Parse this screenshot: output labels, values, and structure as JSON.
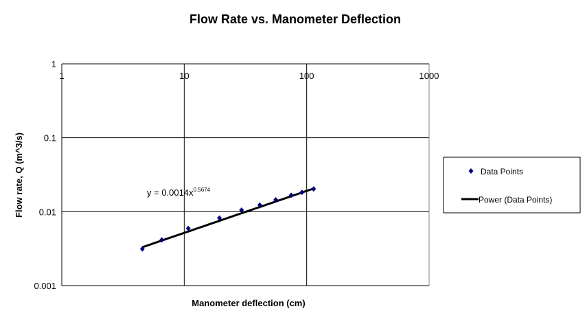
{
  "chart_data": {
    "type": "scatter",
    "title": "Flow Rate vs. Manometer Deflection",
    "xlabel": "Manometer deflection (cm)",
    "ylabel": "Flow rate, Q (m^3/s)",
    "x_scale": "log",
    "y_scale": "log",
    "xlim": [
      1,
      1000
    ],
    "ylim": [
      0.001,
      1
    ],
    "x_ticks": [
      "1",
      "10",
      "100",
      "1000"
    ],
    "y_ticks": [
      "1",
      "0.1",
      "0.01",
      "0.001"
    ],
    "grid": true,
    "legend_position": "right",
    "series": [
      {
        "name": "Data Points",
        "marker": "diamond",
        "color": "#000080",
        "x": [
          4.55,
          6.56,
          10.8,
          19.4,
          29.4,
          41.4,
          55.9,
          74.8,
          91.6,
          114
        ],
        "y": [
          0.00313,
          0.00416,
          0.00594,
          0.0082,
          0.0105,
          0.0123,
          0.0145,
          0.0167,
          0.0183,
          0.0203
        ]
      }
    ],
    "trendline": {
      "name": "Power (Data Points)",
      "type": "power",
      "coefficient": 0.0014,
      "exponent": 0.5674,
      "color": "#000000",
      "equation_base": "y = 0.0014x",
      "equation_exponent": "0.5674"
    }
  }
}
